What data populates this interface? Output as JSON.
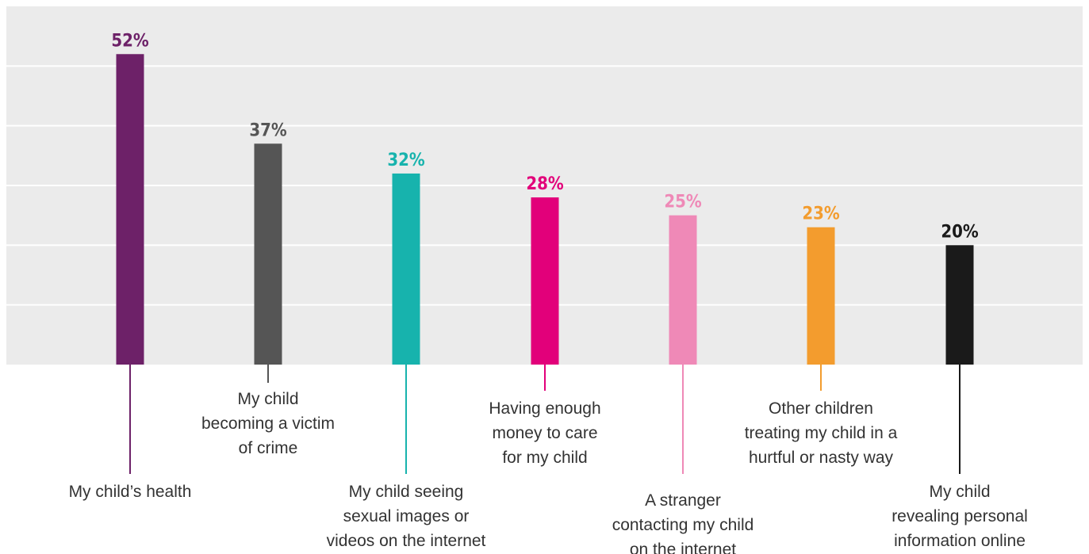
{
  "chart_data": {
    "type": "bar",
    "categories": [
      "My child’s health",
      "My child becoming a victim of crime",
      "My child seeing sexual images or videos on the internet",
      "Having enough money to care for my child",
      "A stranger contacting my child on the internet",
      "Other children treating my child in a hurtful or nasty way",
      "My child revealing personal information online"
    ],
    "category_lines": [
      [
        "My child’s health"
      ],
      [
        "My child",
        "becoming a victim",
        "of crime"
      ],
      [
        "My child seeing",
        "sexual images or",
        "videos on the internet"
      ],
      [
        "Having enough",
        "money to care",
        "for my child"
      ],
      [
        "A stranger",
        "contacting my child",
        "on the internet"
      ],
      [
        "Other children",
        "treating my child in a",
        "hurtful or nasty way"
      ],
      [
        "My child",
        "revealing personal",
        "information online"
      ]
    ],
    "values": [
      52,
      37,
      32,
      28,
      25,
      23,
      20
    ],
    "value_labels": [
      "52%",
      "37%",
      "32%",
      "28%",
      "25%",
      "23%",
      "20%"
    ],
    "colors": [
      "#6d2168",
      "#555555",
      "#17b3ad",
      "#e2007a",
      "#ef89b7",
      "#f39c2e",
      "#1a1a1a"
    ],
    "ylim": [
      0,
      60
    ],
    "grid": true,
    "gridline_step": 10,
    "background_color": "#ebebeb",
    "gridline_color": "#ffffff",
    "category_label_color": "#333333",
    "title": "",
    "xlabel": "",
    "ylabel": ""
  }
}
